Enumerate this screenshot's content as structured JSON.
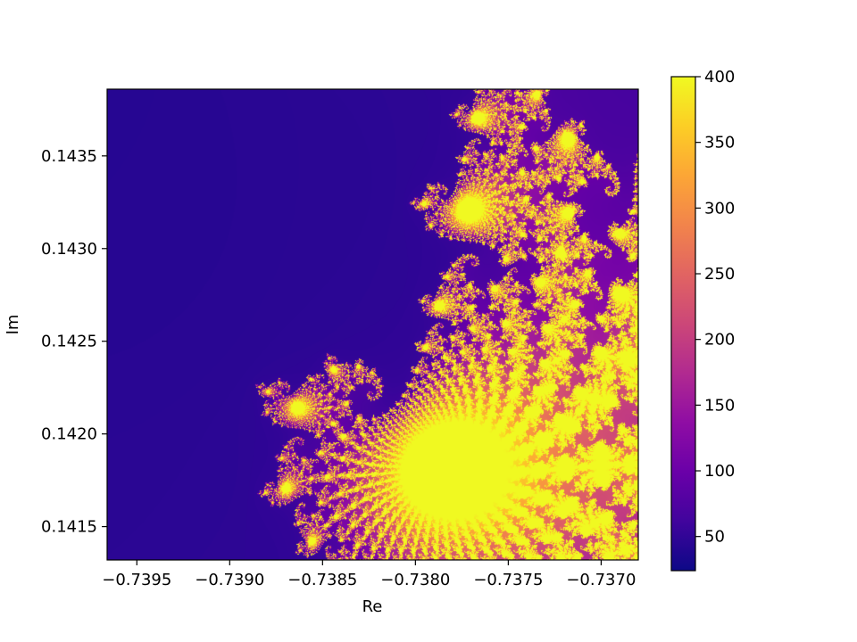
{
  "chart_data": {
    "type": "heatmap",
    "title": "",
    "xlabel": "Re",
    "ylabel": "Im",
    "xlim": [
      -0.73966,
      -0.7368
    ],
    "ylim": [
      0.14132,
      0.14386
    ],
    "x_ticks": [
      {
        "value": -0.7395,
        "label": "−0.7395"
      },
      {
        "value": -0.739,
        "label": "−0.7390"
      },
      {
        "value": -0.7385,
        "label": "−0.7385"
      },
      {
        "value": -0.738,
        "label": "−0.7380"
      },
      {
        "value": -0.7375,
        "label": "−0.7375"
      },
      {
        "value": -0.737,
        "label": "−0.7370"
      }
    ],
    "y_ticks": [
      {
        "value": 0.1415,
        "label": "0.1415"
      },
      {
        "value": 0.142,
        "label": "0.1420"
      },
      {
        "value": 0.1425,
        "label": "0.1425"
      },
      {
        "value": 0.143,
        "label": "0.1430"
      },
      {
        "value": 0.1435,
        "label": "0.1435"
      }
    ],
    "values_description": "escape-iteration count of z -> z^2 + c over the complex plane (Mandelbrot set), max 400",
    "max_iterations": 400,
    "colormap": "plasma",
    "colorbar": {
      "range": [
        24,
        400
      ],
      "ticks": [
        {
          "value": 50,
          "label": "50"
        },
        {
          "value": 100,
          "label": "100"
        },
        {
          "value": 150,
          "label": "150"
        },
        {
          "value": 200,
          "label": "200"
        },
        {
          "value": 250,
          "label": "250"
        },
        {
          "value": 300,
          "label": "300"
        },
        {
          "value": 350,
          "label": "350"
        },
        {
          "value": 400,
          "label": "400"
        }
      ]
    },
    "grid": false,
    "legend": "none"
  }
}
